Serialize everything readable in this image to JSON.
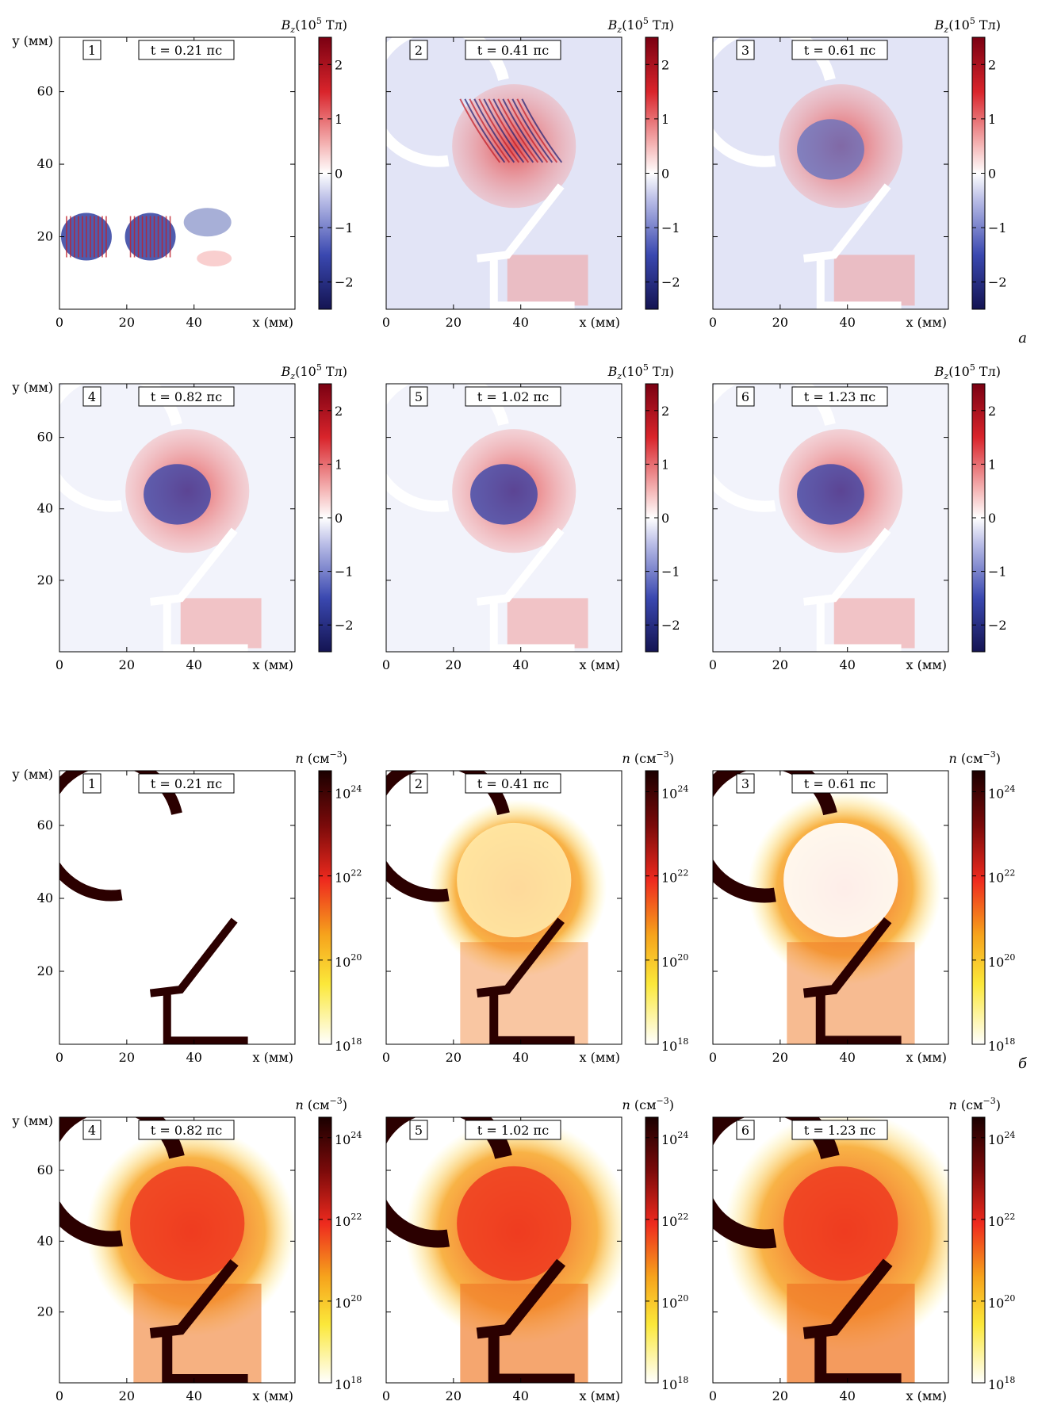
{
  "chart_data": [
    {
      "type": "heatmap",
      "quantity": "magnetic",
      "section_label": "а",
      "x_axis_label": "x (мм)",
      "y_axis_label": "y (мм)",
      "colorbar_label": "Bz (10⁵ Тл)",
      "colorbar_label_parts": {
        "sym": "B",
        "sub": "z",
        "unit": "(10",
        "exp": "5",
        "tail": " Тл)"
      },
      "colorbar_ticks": [
        "2",
        "1",
        "0",
        "−1",
        "−2"
      ],
      "colorbar_range": [
        -2.5,
        2.5
      ],
      "xlim": [
        0,
        70
      ],
      "ylim": [
        0,
        75
      ],
      "x_ticks": [
        "0",
        "20",
        "40"
      ],
      "y_ticks": [
        "20",
        "40",
        "60"
      ],
      "colors": {
        "positive": "#a01020",
        "zero": "#ffffff",
        "negative": "#1a1a6e"
      },
      "panels": [
        {
          "index": "1",
          "time": "t = 0.21 пс"
        },
        {
          "index": "2",
          "time": "t = 0.41 пс"
        },
        {
          "index": "3",
          "time": "t = 0.61 пс"
        },
        {
          "index": "4",
          "time": "t = 0.82 пс"
        },
        {
          "index": "5",
          "time": "t = 1.02 пс"
        },
        {
          "index": "6",
          "time": "t = 1.23 пс"
        }
      ]
    },
    {
      "type": "heatmap",
      "quantity": "density",
      "section_label": "б",
      "x_axis_label": "x (мм)",
      "y_axis_label": "y (мм)",
      "colorbar_label": "n (см⁻³)",
      "colorbar_label_parts": {
        "sym": "n",
        "unit": " (см",
        "exp": "−3",
        "tail": ")"
      },
      "colorbar_ticks": [
        "10²⁴",
        "10²²",
        "10²⁰",
        "10¹⁸"
      ],
      "colorbar_ticks_parts": [
        {
          "base": "10",
          "exp": "24"
        },
        {
          "base": "10",
          "exp": "22"
        },
        {
          "base": "10",
          "exp": "20"
        },
        {
          "base": "10",
          "exp": "18"
        }
      ],
      "colorbar_range": [
        18,
        24.5
      ],
      "colorbar_scale": "log",
      "xlim": [
        0,
        70
      ],
      "ylim": [
        0,
        75
      ],
      "x_ticks": [
        "0",
        "20",
        "40"
      ],
      "y_ticks": [
        "20",
        "40",
        "60"
      ],
      "colors": {
        "high": "#200000",
        "mid": "#e8201a",
        "low": "#fff06a",
        "min": "#ffffff"
      },
      "panels": [
        {
          "index": "1",
          "time": "t = 0.21 пс"
        },
        {
          "index": "2",
          "time": "t = 0.41 пс"
        },
        {
          "index": "3",
          "time": "t = 0.61 пс"
        },
        {
          "index": "4",
          "time": "t = 0.82 пс"
        },
        {
          "index": "5",
          "time": "t = 1.02 пс"
        },
        {
          "index": "6",
          "time": "t = 1.23 пс"
        }
      ]
    }
  ]
}
